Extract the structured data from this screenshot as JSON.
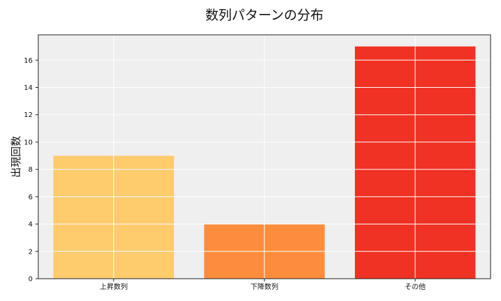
{
  "chart_data": {
    "type": "bar",
    "title": "数列パターンの分布",
    "xlabel": "",
    "ylabel": "出現回数",
    "categories": [
      "上昇数列",
      "下降数列",
      "その他"
    ],
    "values": [
      9,
      4,
      17
    ],
    "colors": [
      "#fecb6d",
      "#fd8d3c",
      "#ef3224"
    ],
    "ylim": [
      0,
      17.85
    ],
    "yticks": [
      0,
      2,
      4,
      6,
      8,
      10,
      12,
      14,
      16
    ],
    "grid": true,
    "background": "#efefef"
  }
}
